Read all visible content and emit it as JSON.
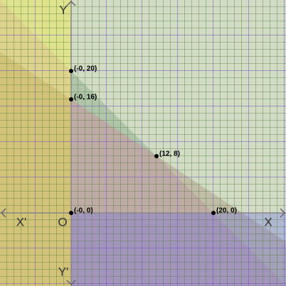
{
  "chart_data": {
    "type": "scatter",
    "xlim": [
      -10,
      30.2
    ],
    "ylim": [
      -10.3,
      30
    ],
    "color": "#000000",
    "axis_labels": {
      "x": "X",
      "x_neg": "X'",
      "y": "Y",
      "y_neg": "Y'",
      "origin": "O"
    },
    "points": [
      {
        "x": 0,
        "y": 20,
        "label": "(-0, 20)"
      },
      {
        "x": 0,
        "y": 16,
        "label": "(-0, 16)"
      },
      {
        "x": 12,
        "y": 8,
        "label": "(12, 8)"
      },
      {
        "x": 0,
        "y": 0,
        "label": "(-0, 0)"
      },
      {
        "x": 20,
        "y": 0,
        "label": "(20, 0)"
      }
    ]
  }
}
